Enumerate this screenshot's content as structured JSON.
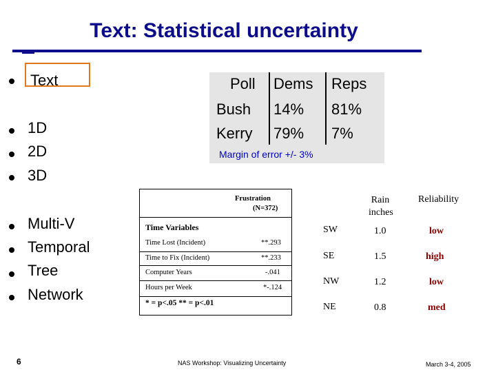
{
  "title": "Text: Statistical uncertainty",
  "bullets": [
    "Text",
    "1D",
    "2D",
    "3D",
    "Multi-V",
    "Temporal",
    "Tree",
    "Network"
  ],
  "poll": {
    "headers": [
      "Poll",
      "Dems",
      "Reps"
    ],
    "rows": [
      [
        "Bush",
        "14%",
        "81%"
      ],
      [
        "Kerry",
        "79%",
        "7%"
      ]
    ],
    "margin": "Margin of error +/- 3%"
  },
  "frustration": {
    "header": "Frustration",
    "n": "(N=372)",
    "section": "Time Variables",
    "rows": [
      {
        "label": "Time Lost  (Incident)",
        "value": "**.293"
      },
      {
        "label": "Time to Fix (Incident)",
        "value": "**.233"
      },
      {
        "label": "Computer Years",
        "value": "-.041"
      },
      {
        "label": "Hours per Week",
        "value": "*-.124"
      }
    ],
    "note": "* = p<.05    ** = p<.01"
  },
  "rain": {
    "headers": [
      "",
      "Rain inches",
      "Reliability"
    ],
    "rows": [
      [
        "SW",
        "1.0",
        "low"
      ],
      [
        "SE",
        "1.5",
        "high"
      ],
      [
        "NW",
        "1.2",
        "low"
      ],
      [
        "NE",
        "0.8",
        "med"
      ]
    ]
  },
  "footer": {
    "slide_number": "6",
    "event": "NAS Workshop: Visualizing Uncertainty",
    "date": "March 3-4, 2005"
  },
  "colors": {
    "title": "#0d0d8c",
    "highlight_box": "#e2771e",
    "margin_text": "#0000cc",
    "reliability_text": "#8b0000",
    "poll_bg": "#e5e5e5"
  }
}
